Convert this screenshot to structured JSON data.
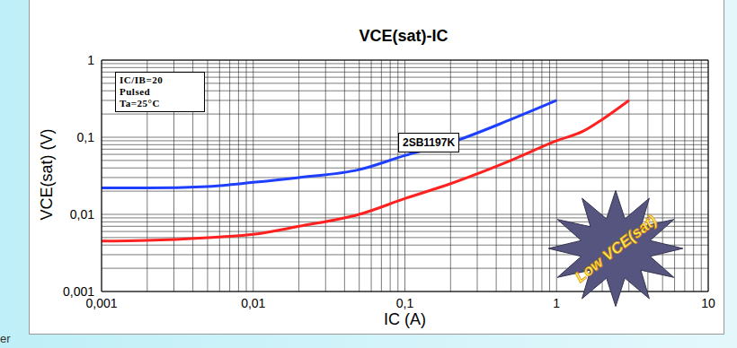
{
  "chart_data": {
    "type": "line",
    "title": "VCE(sat)-IC",
    "x_label": "IC (A)",
    "y_label": "VCE(sat) (V)",
    "log": true,
    "grid": true,
    "xlim": [
      0.001,
      10
    ],
    "ylim": [
      0.001,
      1
    ],
    "xticks": [
      {
        "value": 0.001,
        "label": "0,001"
      },
      {
        "value": 0.01,
        "label": "0,01"
      },
      {
        "value": 0.1,
        "label": "0,1"
      },
      1,
      10
    ],
    "yticks": [
      {
        "value": 0.001,
        "label": "0,001"
      },
      {
        "value": 0.01,
        "label": "0,01"
      },
      {
        "value": 0.1,
        "label": "0,1"
      },
      1
    ],
    "series": [
      {
        "color": "#1f3fff",
        "x": [
          0.001,
          0.002,
          0.005,
          0.01,
          0.02,
          0.05,
          0.1,
          0.2,
          0.5,
          1
        ],
        "values": [
          0.022,
          0.022,
          0.023,
          0.026,
          0.03,
          0.038,
          0.058,
          0.085,
          0.17,
          0.3
        ]
      },
      {
        "color": "#ff2020",
        "x": [
          0.001,
          0.002,
          0.005,
          0.01,
          0.02,
          0.05,
          0.1,
          0.2,
          0.5,
          1,
          1.5,
          2,
          3
        ],
        "values": [
          0.0045,
          0.0046,
          0.005,
          0.0055,
          0.007,
          0.01,
          0.016,
          0.025,
          0.05,
          0.09,
          0.12,
          0.17,
          0.3
        ]
      }
    ],
    "annotations": [
      [
        "IC/IB=20",
        "Pulsed",
        "Ta=25°C"
      ],
      [
        "2SB1197K"
      ],
      [
        "Low VCE(sat)"
      ],
      [
        "er"
      ]
    ]
  }
}
